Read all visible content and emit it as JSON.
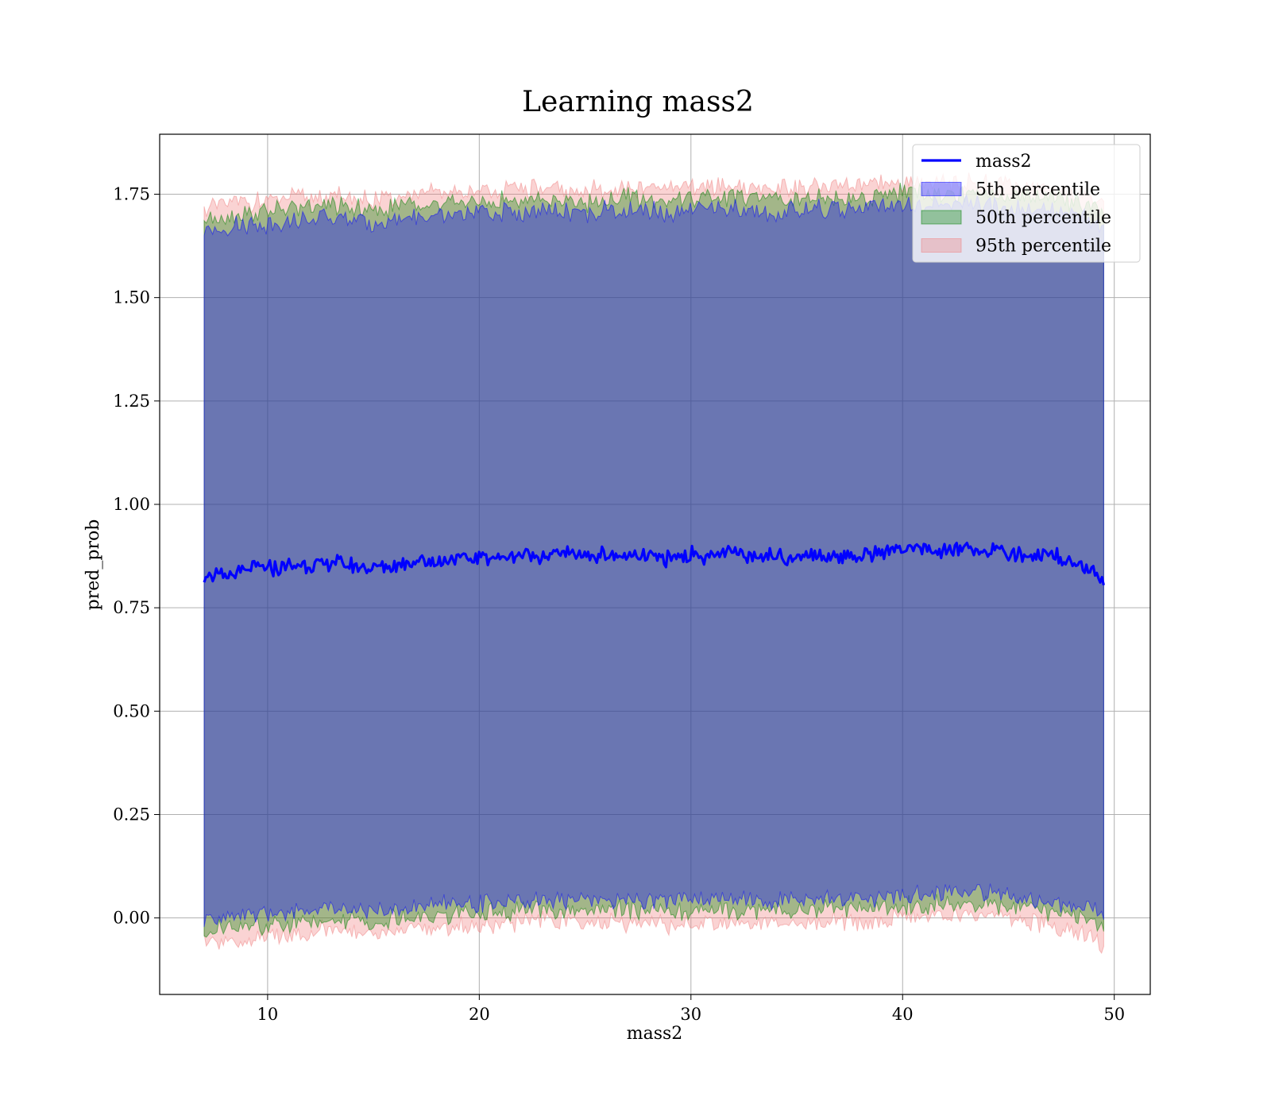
{
  "chart_data": {
    "type": "area",
    "title": "Learning mass2",
    "xlabel": "mass2",
    "ylabel": "pred_prob",
    "xlim": [
      4.9,
      51.7
    ],
    "ylim": [
      -0.185,
      1.895
    ],
    "xticks": [
      10,
      20,
      30,
      40,
      50
    ],
    "xtick_labels": [
      "10",
      "20",
      "30",
      "40",
      "50"
    ],
    "yticks": [
      0.0,
      0.25,
      0.5,
      0.75,
      1.0,
      1.25,
      1.5,
      1.75
    ],
    "ytick_labels": [
      "0.00",
      "0.25",
      "0.50",
      "0.75",
      "1.00",
      "1.25",
      "1.50",
      "1.75"
    ],
    "grid": true,
    "legend_position": "top-right",
    "x": [
      7.0,
      8.0,
      9.0,
      10.0,
      11.0,
      12.0,
      13.0,
      14.0,
      15.0,
      16.0,
      17.0,
      18.0,
      19.0,
      20.0,
      21.0,
      22.0,
      23.0,
      24.0,
      25.0,
      26.0,
      27.0,
      28.0,
      29.0,
      30.0,
      31.0,
      32.0,
      33.0,
      34.0,
      35.0,
      36.0,
      37.0,
      38.0,
      39.0,
      40.0,
      41.0,
      42.0,
      43.0,
      44.0,
      45.0,
      46.0,
      47.0,
      48.0,
      49.0,
      49.5
    ],
    "series": [
      {
        "name": "mass2",
        "kind": "line",
        "color": "#0000ff",
        "values": [
          0.83,
          0.825,
          0.84,
          0.845,
          0.85,
          0.855,
          0.86,
          0.85,
          0.845,
          0.855,
          0.865,
          0.86,
          0.87,
          0.87,
          0.872,
          0.878,
          0.875,
          0.88,
          0.878,
          0.88,
          0.87,
          0.872,
          0.868,
          0.878,
          0.875,
          0.88,
          0.878,
          0.875,
          0.872,
          0.878,
          0.88,
          0.875,
          0.885,
          0.892,
          0.89,
          0.885,
          0.895,
          0.89,
          0.882,
          0.875,
          0.882,
          0.86,
          0.845,
          0.8
        ]
      },
      {
        "name": "5th percentile",
        "kind": "band",
        "color": "#0000ff",
        "upper": [
          1.665,
          1.67,
          1.675,
          1.68,
          1.685,
          1.688,
          1.69,
          1.685,
          1.68,
          1.69,
          1.695,
          1.695,
          1.7,
          1.702,
          1.705,
          1.705,
          1.708,
          1.705,
          1.7,
          1.71,
          1.71,
          1.708,
          1.705,
          1.712,
          1.712,
          1.715,
          1.712,
          1.71,
          1.708,
          1.712,
          1.715,
          1.712,
          1.718,
          1.722,
          1.72,
          1.72,
          1.725,
          1.722,
          1.718,
          1.712,
          1.71,
          1.7,
          1.69,
          1.68
        ],
        "lower": [
          -0.01,
          0.0,
          0.005,
          0.01,
          0.015,
          0.02,
          0.025,
          0.02,
          0.015,
          0.025,
          0.03,
          0.03,
          0.035,
          0.035,
          0.04,
          0.042,
          0.045,
          0.045,
          0.04,
          0.045,
          0.045,
          0.045,
          0.04,
          0.045,
          0.045,
          0.048,
          0.045,
          0.042,
          0.04,
          0.045,
          0.048,
          0.045,
          0.05,
          0.055,
          0.058,
          0.06,
          0.065,
          0.06,
          0.055,
          0.048,
          0.04,
          0.03,
          0.015,
          0.0
        ]
      },
      {
        "name": "50th percentile",
        "kind": "band",
        "color": "#008000",
        "upper": [
          1.695,
          1.7,
          1.705,
          1.71,
          1.715,
          1.718,
          1.72,
          1.715,
          1.71,
          1.72,
          1.725,
          1.725,
          1.73,
          1.732,
          1.735,
          1.735,
          1.738,
          1.735,
          1.73,
          1.74,
          1.74,
          1.738,
          1.735,
          1.742,
          1.742,
          1.745,
          1.742,
          1.74,
          1.738,
          1.742,
          1.745,
          1.742,
          1.748,
          1.752,
          1.75,
          1.75,
          1.755,
          1.752,
          1.748,
          1.742,
          1.74,
          1.73,
          1.72,
          1.71
        ],
        "lower": [
          -0.035,
          -0.025,
          -0.02,
          -0.015,
          -0.01,
          -0.005,
          0.0,
          -0.005,
          -0.01,
          0.0,
          0.005,
          0.005,
          0.01,
          0.01,
          0.015,
          0.017,
          0.02,
          0.02,
          0.015,
          0.02,
          0.02,
          0.02,
          0.015,
          0.02,
          0.02,
          0.023,
          0.02,
          0.017,
          0.015,
          0.02,
          0.023,
          0.02,
          0.025,
          0.03,
          0.033,
          0.035,
          0.04,
          0.035,
          0.03,
          0.023,
          0.015,
          0.005,
          -0.01,
          -0.025
        ]
      },
      {
        "name": "95th percentile",
        "kind": "band",
        "color": "#f08080",
        "upper": [
          1.72,
          1.725,
          1.73,
          1.735,
          1.74,
          1.743,
          1.745,
          1.74,
          1.735,
          1.745,
          1.75,
          1.75,
          1.755,
          1.757,
          1.76,
          1.76,
          1.763,
          1.76,
          1.755,
          1.765,
          1.765,
          1.763,
          1.76,
          1.767,
          1.767,
          1.77,
          1.767,
          1.765,
          1.763,
          1.767,
          1.77,
          1.767,
          1.773,
          1.777,
          1.775,
          1.775,
          1.78,
          1.777,
          1.773,
          1.767,
          1.765,
          1.755,
          1.745,
          1.735
        ],
        "lower": [
          -0.065,
          -0.055,
          -0.05,
          -0.045,
          -0.04,
          -0.035,
          -0.03,
          -0.035,
          -0.04,
          -0.03,
          -0.025,
          -0.025,
          -0.02,
          -0.02,
          -0.015,
          -0.013,
          -0.01,
          -0.01,
          -0.015,
          -0.01,
          -0.01,
          -0.01,
          -0.015,
          -0.01,
          -0.01,
          -0.007,
          -0.01,
          -0.013,
          -0.015,
          -0.01,
          -0.007,
          -0.01,
          -0.005,
          0.0,
          0.003,
          0.005,
          0.01,
          0.005,
          0.0,
          -0.007,
          -0.015,
          -0.025,
          -0.04,
          -0.075
        ]
      }
    ]
  }
}
